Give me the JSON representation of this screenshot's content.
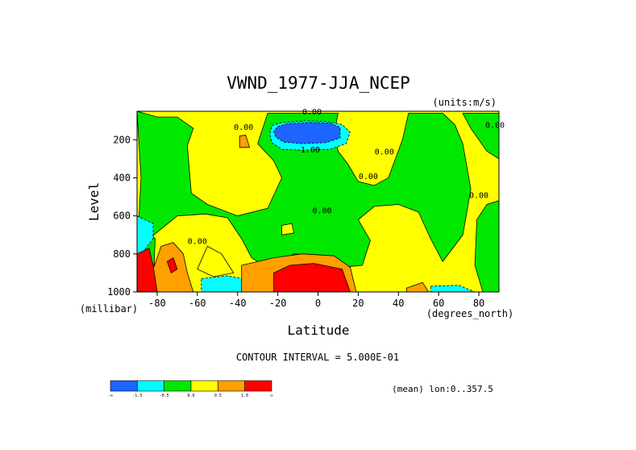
{
  "chart_data": {
    "type": "contour",
    "title": "VWND_1977-JJA_NCEP",
    "units_note": "(units:m/s)",
    "xlabel": "Latitude",
    "x_unit": "(degrees_north)",
    "ylabel": "Level",
    "y_unit": "(millibar)",
    "xlim": [
      -90,
      90
    ],
    "ylim": [
      1000,
      50
    ],
    "y_inverted": true,
    "x_ticks": [
      -80,
      -60,
      -40,
      -20,
      0,
      20,
      40,
      60,
      80
    ],
    "y_ticks": [
      200,
      400,
      600,
      800,
      1000
    ],
    "contour_interval_text": "CONTOUR INTERVAL = 5.000E-01",
    "mean_note": "(mean) lon:0..357.5",
    "contour_labels": [
      {
        "text": "0.00",
        "lat": -3,
        "lev": 50
      },
      {
        "text": "0.00",
        "lat": -37,
        "lev": 130
      },
      {
        "text": "-1.00",
        "lat": -5,
        "lev": 250
      },
      {
        "text": "0.00",
        "lat": 33,
        "lev": 260
      },
      {
        "text": "0.00",
        "lat": 25,
        "lev": 390
      },
      {
        "text": "0.00",
        "lat": 88,
        "lev": 120
      },
      {
        "text": "0.00",
        "lat": 80,
        "lev": 490
      },
      {
        "text": "0.00",
        "lat": 2,
        "lev": 570
      },
      {
        "text": "0.00",
        "lat": -60,
        "lev": 730
      }
    ],
    "colorbar": {
      "colors": [
        "#1e64ff",
        "#00ffff",
        "#00e800",
        "#ffff00",
        "#ffa000",
        "#ff0000"
      ],
      "labels": [
        "-∞",
        "-1.5",
        "-0.5",
        "0.0",
        "0.5",
        "1.0",
        "∞"
      ]
    },
    "regions": [
      {
        "level": "neg_0.5_0",
        "color": "#00e800",
        "points": [
          [
            -90,
            50
          ],
          [
            -88,
            400
          ],
          [
            -89,
            600
          ],
          [
            -84,
            720
          ],
          [
            -70,
            600
          ],
          [
            -56,
            590
          ],
          [
            -45,
            610
          ],
          [
            -38,
            720
          ],
          [
            -33,
            820
          ],
          [
            -24,
            880
          ],
          [
            -12,
            800
          ],
          [
            2,
            810
          ],
          [
            12,
            870
          ],
          [
            22,
            860
          ],
          [
            26,
            730
          ],
          [
            20,
            620
          ],
          [
            28,
            550
          ],
          [
            40,
            540
          ],
          [
            50,
            580
          ],
          [
            56,
            720
          ],
          [
            62,
            840
          ],
          [
            72,
            700
          ],
          [
            76,
            460
          ],
          [
            72,
            220
          ],
          [
            68,
            120
          ],
          [
            62,
            60
          ],
          [
            45,
            60
          ],
          [
            42,
            200
          ],
          [
            35,
            400
          ],
          [
            28,
            440
          ],
          [
            20,
            420
          ],
          [
            15,
            330
          ],
          [
            10,
            260
          ],
          [
            8,
            170
          ],
          [
            10,
            60
          ],
          [
            -25,
            60
          ],
          [
            -30,
            220
          ],
          [
            -22,
            310
          ],
          [
            -18,
            400
          ],
          [
            -25,
            560
          ],
          [
            -40,
            600
          ],
          [
            -55,
            540
          ],
          [
            -63,
            480
          ],
          [
            -65,
            230
          ],
          [
            -62,
            140
          ],
          [
            -70,
            80
          ],
          [
            -80,
            80
          ],
          [
            -90,
            50
          ]
        ]
      },
      {
        "level": "neg_1.5_neg_0.5",
        "color": "#00ffff",
        "points": [
          [
            -23,
            125
          ],
          [
            -18,
            110
          ],
          [
            -5,
            100
          ],
          [
            5,
            105
          ],
          [
            12,
            120
          ],
          [
            16,
            160
          ],
          [
            14,
            220
          ],
          [
            6,
            250
          ],
          [
            -8,
            255
          ],
          [
            -18,
            250
          ],
          [
            -23,
            215
          ],
          [
            -24,
            170
          ]
        ]
      },
      {
        "level": "neg_inf_neg_1.5",
        "color": "#1e64ff",
        "points": [
          [
            -20,
            130
          ],
          [
            -15,
            115
          ],
          [
            -4,
            108
          ],
          [
            6,
            112
          ],
          [
            11,
            135
          ],
          [
            11,
            190
          ],
          [
            4,
            215
          ],
          [
            -8,
            220
          ],
          [
            -17,
            212
          ],
          [
            -21,
            185
          ],
          [
            -22,
            155
          ]
        ]
      },
      {
        "level": "neg_0.5_0",
        "color": "#00e800",
        "points": [
          [
            72,
            60
          ],
          [
            76,
            140
          ],
          [
            84,
            260
          ],
          [
            90,
            300
          ],
          [
            90,
            60
          ]
        ]
      },
      {
        "level": "neg_0.5_0",
        "color": "#00e800",
        "points": [
          [
            79,
            620
          ],
          [
            84,
            540
          ],
          [
            90,
            520
          ],
          [
            90,
            1000
          ],
          [
            82,
            1000
          ],
          [
            78,
            860
          ]
        ]
      },
      {
        "level": "neg_0.5_0",
        "color": "#00e800",
        "points": [
          [
            -90,
            620
          ],
          [
            -81,
            720
          ],
          [
            -82,
            1000
          ],
          [
            -90,
            1000
          ]
        ]
      },
      {
        "level": "neg_1.5_neg_0.5",
        "color": "#00ffff",
        "points": [
          [
            -90,
            600
          ],
          [
            -82,
            640
          ],
          [
            -82,
            720
          ],
          [
            -87,
            790
          ],
          [
            -90,
            800
          ]
        ]
      },
      {
        "level": "neg_1.5_neg_0.5",
        "color": "#00ffff",
        "points": [
          [
            -58,
            930
          ],
          [
            -45,
            915
          ],
          [
            -33,
            940
          ],
          [
            -32,
            1000
          ],
          [
            -58,
            1000
          ]
        ]
      },
      {
        "level": "neg_1.5_neg_0.5",
        "color": "#00ffff",
        "points": [
          [
            56,
            970
          ],
          [
            70,
            965
          ],
          [
            78,
            1000
          ],
          [
            56,
            1000
          ]
        ]
      },
      {
        "level": "0_0.5",
        "color": "#ffff00",
        "points": [
          [
            -55,
            760
          ],
          [
            -48,
            800
          ],
          [
            -42,
            900
          ],
          [
            -52,
            920
          ],
          [
            -60,
            880
          ]
        ]
      },
      {
        "level": "0_0.5",
        "color": "#ffff00",
        "points": [
          [
            -18,
            650
          ],
          [
            -13,
            640
          ],
          [
            -12,
            690
          ],
          [
            -18,
            700
          ]
        ]
      },
      {
        "level": "0.5_1.0",
        "color": "#ffa000",
        "points": [
          [
            -78,
            760
          ],
          [
            -72,
            740
          ],
          [
            -67,
            800
          ],
          [
            -65,
            900
          ],
          [
            -62,
            1000
          ],
          [
            -80,
            1000
          ],
          [
            -82,
            880
          ]
        ]
      },
      {
        "level": "0.5_1.0",
        "color": "#ffa000",
        "points": [
          [
            -38,
            860
          ],
          [
            -22,
            820
          ],
          [
            -8,
            800
          ],
          [
            8,
            810
          ],
          [
            16,
            870
          ],
          [
            19,
            1000
          ],
          [
            -38,
            1000
          ]
        ]
      },
      {
        "level": "0.5_1.0",
        "color": "#ffa000",
        "points": [
          [
            -39,
            180
          ],
          [
            -36,
            175
          ],
          [
            -34,
            240
          ],
          [
            -39,
            240
          ]
        ]
      },
      {
        "level": "0.5_1.0",
        "color": "#ffa000",
        "points": [
          [
            44,
            980
          ],
          [
            52,
            950
          ],
          [
            55,
            1000
          ],
          [
            44,
            1000
          ]
        ]
      },
      {
        "level": "1.0_inf",
        "color": "#ff0000",
        "points": [
          [
            -22,
            900
          ],
          [
            -14,
            860
          ],
          [
            -2,
            850
          ],
          [
            12,
            880
          ],
          [
            16,
            1000
          ],
          [
            -22,
            1000
          ]
        ]
      },
      {
        "level": "1.0_inf",
        "color": "#ff0000",
        "points": [
          [
            -90,
            800
          ],
          [
            -84,
            770
          ],
          [
            -82,
            860
          ],
          [
            -80,
            1000
          ],
          [
            -90,
            1000
          ]
        ]
      },
      {
        "level": "1.0_inf",
        "color": "#ff0000",
        "points": [
          [
            -75,
            840
          ],
          [
            -72,
            820
          ],
          [
            -70,
            880
          ],
          [
            -73,
            900
          ]
        ]
      }
    ]
  }
}
